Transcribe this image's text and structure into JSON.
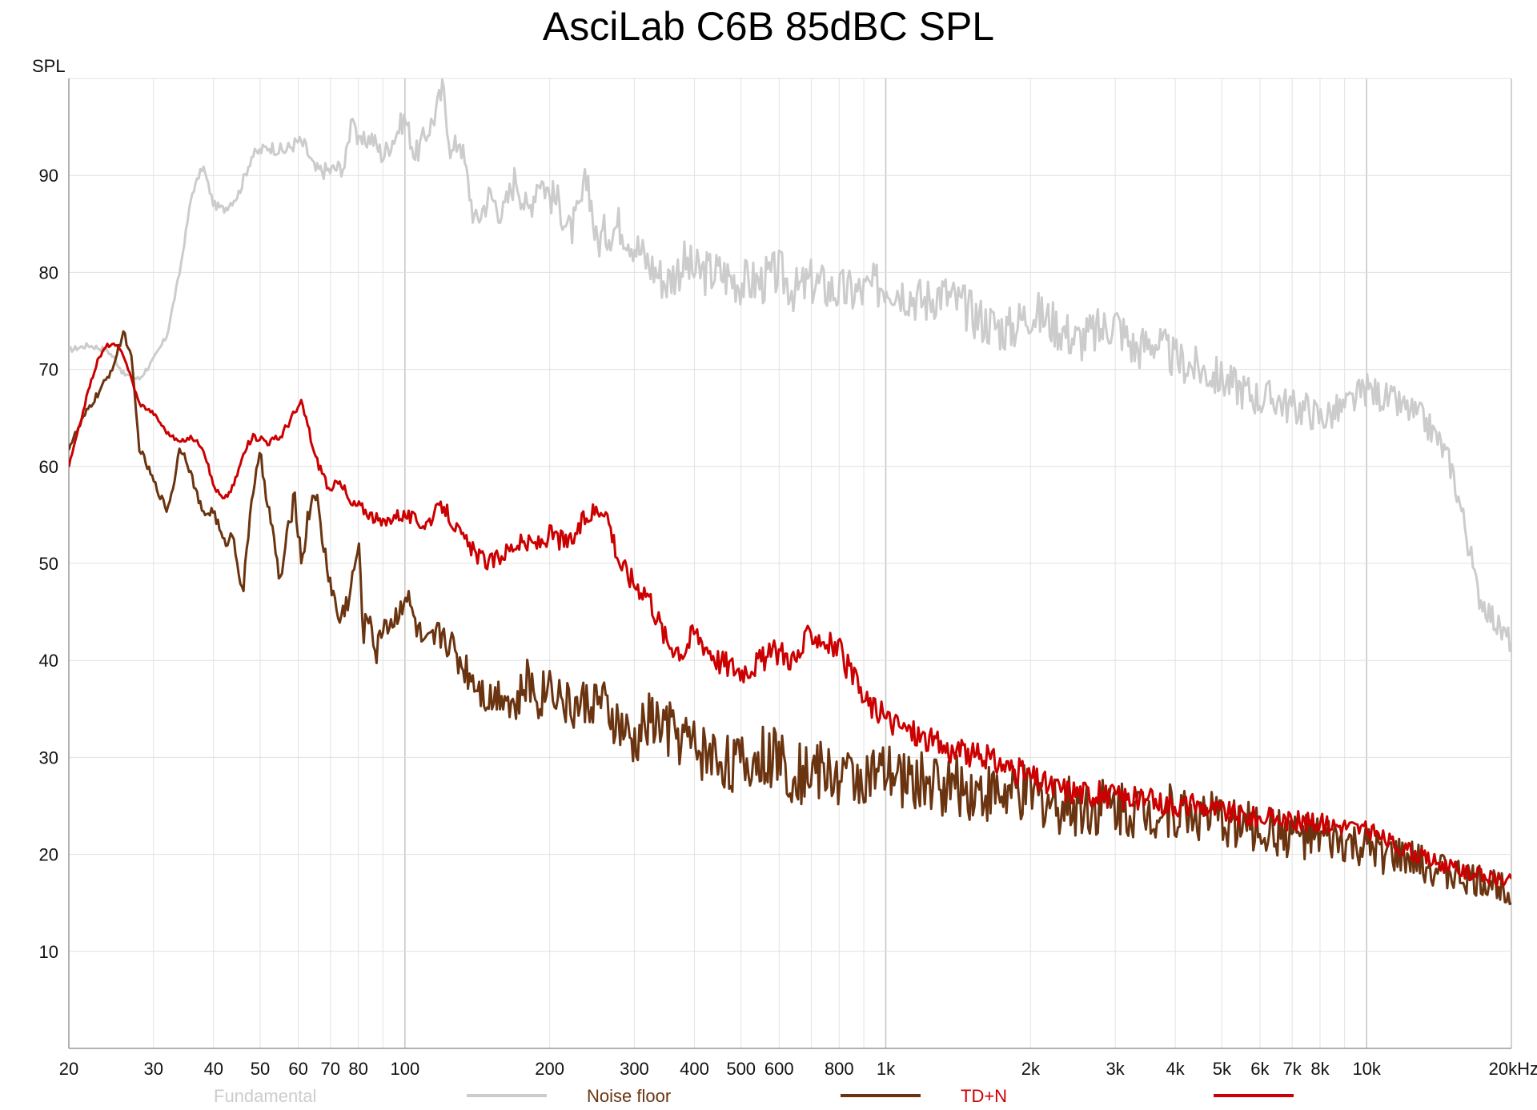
{
  "chart_data": {
    "type": "line",
    "title": "AsciLab C6B 85dBC SPL",
    "ylabel": "SPL",
    "xlabel": "",
    "x_scale": "log",
    "xlim": [
      20,
      20000
    ],
    "ylim": [
      0,
      100
    ],
    "grid": true,
    "legend_position": "bottom",
    "x_ticks": [
      20,
      30,
      40,
      50,
      60,
      70,
      80,
      100,
      200,
      300,
      400,
      500,
      600,
      800,
      1000,
      2000,
      3000,
      4000,
      5000,
      6000,
      7000,
      8000,
      10000,
      20000
    ],
    "x_tick_labels": [
      "20",
      "30",
      "40",
      "50",
      "60",
      "70",
      "80",
      "100",
      "200",
      "300",
      "400",
      "500",
      "600",
      "800",
      "1k",
      "2k",
      "3k",
      "4k",
      "5k",
      "6k",
      "7k",
      "8k",
      "10k",
      "20kHz"
    ],
    "y_ticks": [
      10,
      20,
      30,
      40,
      50,
      60,
      70,
      80,
      90
    ],
    "y_tick_labels": [
      "10",
      "20",
      "30",
      "40",
      "50",
      "60",
      "70",
      "80",
      "90"
    ],
    "series": [
      {
        "name": "Fundamental",
        "color": "#cccccc",
        "x": [
          20,
          22,
          24,
          25,
          26,
          28,
          30,
          32,
          34,
          36,
          38,
          40,
          42,
          45,
          48,
          52,
          56,
          60,
          62,
          65,
          70,
          75,
          78,
          80,
          85,
          90,
          95,
          100,
          105,
          110,
          115,
          120,
          125,
          130,
          140,
          150,
          160,
          170,
          180,
          190,
          200,
          210,
          220,
          230,
          240,
          250,
          260,
          280,
          300,
          320,
          350,
          380,
          400,
          450,
          500,
          550,
          600,
          650,
          700,
          800,
          900,
          1000,
          1100,
          1200,
          1300,
          1400,
          1600,
          1800,
          2000,
          2200,
          2500,
          2800,
          3000,
          3300,
          3600,
          4000,
          4500,
          5000,
          5500,
          6000,
          6500,
          7000,
          7500,
          8000,
          9000,
          10000,
          11000,
          12000,
          13000,
          14000,
          15000,
          16000,
          17000,
          18000,
          19000,
          20000
        ],
        "y": [
          72,
          72.5,
          72,
          71,
          69.5,
          69,
          71,
          73.5,
          80,
          88,
          91,
          87,
          86.5,
          88,
          92,
          93,
          92.5,
          93.5,
          93,
          90.5,
          90.5,
          91,
          97,
          93,
          94,
          92,
          94,
          96,
          92,
          94,
          96,
          99,
          92,
          94,
          85,
          88,
          86,
          90,
          86,
          90,
          88,
          87,
          84,
          86,
          90,
          83,
          84,
          85,
          83,
          81,
          79,
          81,
          80,
          80,
          79,
          79,
          80,
          78,
          79,
          78,
          78,
          79,
          78,
          77,
          78,
          77,
          75,
          74,
          76,
          75,
          73,
          74,
          75,
          72,
          73,
          71,
          70,
          69,
          68,
          67,
          67,
          66,
          66,
          65,
          66,
          68,
          67,
          66,
          65,
          63,
          60,
          54,
          47,
          45,
          43,
          42
        ]
      },
      {
        "name": "Noise floor",
        "color": "#6b3410",
        "x": [
          20,
          21,
          22,
          23,
          24,
          25,
          26,
          27,
          28,
          30,
          32,
          33,
          34,
          35,
          36,
          38,
          40,
          42,
          44,
          46,
          48,
          50,
          52,
          55,
          57,
          59,
          61,
          63,
          65,
          67,
          70,
          73,
          77,
          80,
          82,
          85,
          87,
          90,
          95,
          100,
          110,
          120,
          130,
          140,
          150,
          160,
          170,
          180,
          190,
          200,
          220,
          250,
          280,
          300,
          320,
          350,
          380,
          400,
          450,
          500,
          550,
          600,
          650,
          700,
          800,
          900,
          1000,
          1200,
          1400,
          1600,
          1800,
          2000,
          2200,
          2500,
          3000,
          3500,
          4000,
          4500,
          5000,
          5500,
          6000,
          7000,
          8000,
          9000,
          10000,
          11000,
          12000,
          13000,
          14000,
          15000,
          16000,
          17000,
          18000,
          19000,
          20000
        ],
        "y": [
          62,
          64,
          66,
          67.5,
          69,
          71,
          74,
          71,
          62,
          58.5,
          55.5,
          58,
          62,
          61,
          59,
          55,
          55.5,
          52,
          53,
          46.5,
          57,
          61,
          56,
          48,
          53,
          57,
          50,
          55,
          58,
          53,
          48,
          44,
          47,
          52,
          43,
          45,
          40,
          44,
          44,
          47,
          41,
          43,
          40,
          38,
          36,
          37,
          35,
          38,
          36,
          38,
          35,
          36,
          33,
          31,
          34,
          33,
          32,
          31,
          30,
          29,
          30,
          30,
          28,
          29,
          28,
          28,
          28,
          27.5,
          27,
          26.5,
          26,
          26,
          25.5,
          25,
          25,
          24.5,
          24.5,
          24,
          23.5,
          23,
          22.5,
          22,
          21.5,
          21,
          20.5,
          20,
          19.5,
          19,
          18.5,
          18,
          17.5,
          17.2,
          17,
          16.8,
          16.5
        ]
      },
      {
        "name": "TD+N",
        "color": "#cc0000",
        "x": [
          20,
          21,
          22,
          23,
          24,
          25,
          26,
          27,
          28,
          30,
          32,
          34,
          36,
          38,
          40,
          42,
          44,
          46,
          48,
          50,
          52,
          55,
          58,
          61,
          63,
          65,
          68,
          70,
          73,
          77,
          80,
          85,
          90,
          95,
          100,
          110,
          120,
          130,
          140,
          150,
          160,
          170,
          180,
          190,
          200,
          220,
          240,
          260,
          280,
          300,
          320,
          350,
          380,
          400,
          450,
          500,
          550,
          600,
          650,
          700,
          800,
          900,
          1000,
          1200,
          1400,
          1600,
          1800,
          2000,
          2200,
          2500,
          3000,
          3500,
          4000,
          4500,
          5000,
          5500,
          6000,
          7000,
          8000,
          9000,
          10000,
          11000,
          12000,
          13000,
          14000,
          15000,
          16000,
          17000,
          18000,
          19000,
          20000
        ],
        "y": [
          60,
          64,
          68,
          71,
          72.5,
          72.5,
          71.5,
          69,
          66.5,
          65.5,
          63.5,
          62.5,
          63,
          62,
          58,
          56.5,
          58,
          61,
          63,
          63,
          62.5,
          63,
          65,
          66.5,
          64,
          61,
          59,
          57,
          59,
          56,
          56,
          55,
          54,
          55,
          55,
          54,
          56,
          53,
          51,
          50,
          51,
          52,
          52,
          52,
          53,
          52,
          55,
          56,
          50,
          48,
          47,
          42,
          41,
          43,
          40,
          39,
          40,
          41,
          40,
          43,
          41,
          36,
          34,
          32,
          30.5,
          30,
          29,
          28,
          27,
          26.5,
          26,
          25.5,
          25.2,
          25,
          24.5,
          24,
          23.8,
          23.5,
          23.2,
          23,
          22.5,
          21.5,
          20.5,
          19.8,
          19.2,
          18.6,
          18.2,
          17.9,
          17.6,
          17.4,
          17.2
        ]
      }
    ]
  }
}
